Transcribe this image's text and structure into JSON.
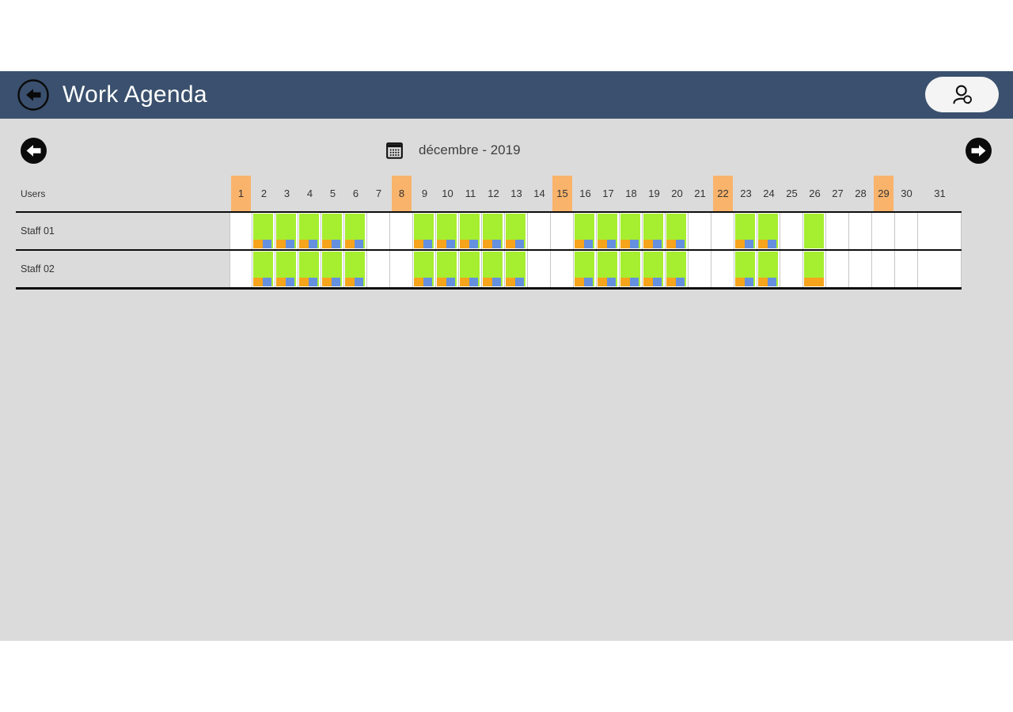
{
  "app": {
    "title": "Work Agenda"
  },
  "header": {
    "icons": {
      "back": "back-arrow-icon",
      "users": "people-icon"
    }
  },
  "month_nav": {
    "label": "décembre - 2019",
    "icons": {
      "calendar": "calendar-icon",
      "prev": "arrow-left-icon",
      "next": "arrow-right-icon"
    }
  },
  "agenda": {
    "users_header": "Users",
    "days": [
      1,
      2,
      3,
      4,
      5,
      6,
      7,
      8,
      9,
      10,
      11,
      12,
      13,
      14,
      15,
      16,
      17,
      18,
      19,
      20,
      21,
      22,
      23,
      24,
      25,
      26,
      27,
      28,
      29,
      30,
      31
    ],
    "sundays": [
      1,
      8,
      15,
      22,
      29
    ],
    "rows": [
      {
        "label": "Staff 01",
        "cells": [
          "",
          "ob",
          "ob",
          "ob",
          "ob",
          "ob",
          "",
          "",
          "ob",
          "ob",
          "ob",
          "ob",
          "ob",
          "",
          "",
          "ob",
          "ob",
          "ob",
          "ob",
          "ob",
          "",
          "",
          "ob",
          "ob",
          "",
          "g",
          "",
          "",
          "",
          "",
          ""
        ]
      },
      {
        "label": "Staff 02",
        "cells": [
          "",
          "ob",
          "ob",
          "ob",
          "ob",
          "ob",
          "",
          "",
          "ob",
          "ob",
          "ob",
          "ob",
          "ob",
          "",
          "",
          "ob",
          "ob",
          "ob",
          "ob",
          "ob",
          "",
          "",
          "ob",
          "ob",
          "",
          "go",
          "",
          "",
          "",
          "",
          ""
        ]
      }
    ]
  },
  "colors": {
    "header_bar": "#3A506E",
    "page_gray": "#DBDBDB",
    "sunday_orange": "#F9B36B",
    "shift_green": "#A6EE30",
    "task_orange": "#F6A41C",
    "task_blue": "#6590DF"
  }
}
